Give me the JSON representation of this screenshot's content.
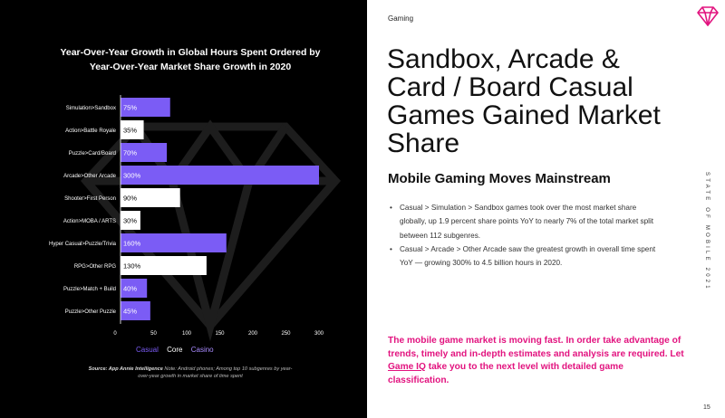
{
  "slide": {
    "category": "Gaming",
    "headline": "Sandbox, Arcade & Card / Board Casual Games Gained Market Share",
    "subheading": "Mobile Gaming Moves Mainstream",
    "bullets": [
      "Casual > Simulation > Sandbox games took over the most market share globally, up 1.9 percent share points YoY to nearly 7% of the total market split between 112 subgenres.",
      "Casual > Arcade > Other Arcade saw the greatest growth in overall time spent YoY — growing 300% to 4.5 billion hours in 2020."
    ],
    "bullet_symbol": "•",
    "callout_before": "The mobile game market is moving fast. In order take advantage of trends, timely and in-depth estimates and analysis are required. Let ",
    "callout_link": "Game IQ",
    "callout_after": " take you to the next level with detailed game classification.",
    "vertical_label": "STATE OF MOBILE 2021",
    "page_number": "15",
    "logo_icon": "diamond-logo-icon"
  },
  "source": {
    "bold": "Source: App Annie Intelligence",
    "note": " Note: Android phones; Among top 10 subgenres by year-over-year growth in market share of time spent"
  },
  "colors": {
    "casual": "#7b5cf5",
    "core": "#ffffff",
    "casino": "#a98bff",
    "accent": "#e2137f"
  },
  "chart_data": {
    "type": "bar",
    "orientation": "horizontal",
    "title": "Year-Over-Year Growth in Global Hours Spent Ordered by Year-Over-Year Market Share Growth in 2020",
    "categories": [
      "Simulation>Sandbox",
      "Action>Battle Royale",
      "Puzzle>Card/Board",
      "Arcade>Other Arcade",
      "Shooter>First Person",
      "Action>MOBA / ARTS",
      "Hyper Casual>Puzzle/Trivia",
      "RPG>Other RPG",
      "Puzzle>Match + Build",
      "Puzzle>Other Puzzle"
    ],
    "values": [
      75,
      35,
      70,
      300,
      90,
      30,
      160,
      130,
      40,
      45
    ],
    "value_labels": [
      "75%",
      "35%",
      "70%",
      "300%",
      "90%",
      "30%",
      "160%",
      "130%",
      "40%",
      "45%"
    ],
    "groups": [
      "Casual",
      "Core",
      "Casual",
      "Casual",
      "Core",
      "Core",
      "Casual",
      "Core",
      "Casual",
      "Casual"
    ],
    "x_ticks": [
      0,
      50,
      100,
      150,
      200,
      250,
      300
    ],
    "xlim": [
      0,
      310
    ],
    "legend": [
      "Casual",
      "Core",
      "Casino"
    ],
    "legend_position": "bottom",
    "grid": false
  }
}
